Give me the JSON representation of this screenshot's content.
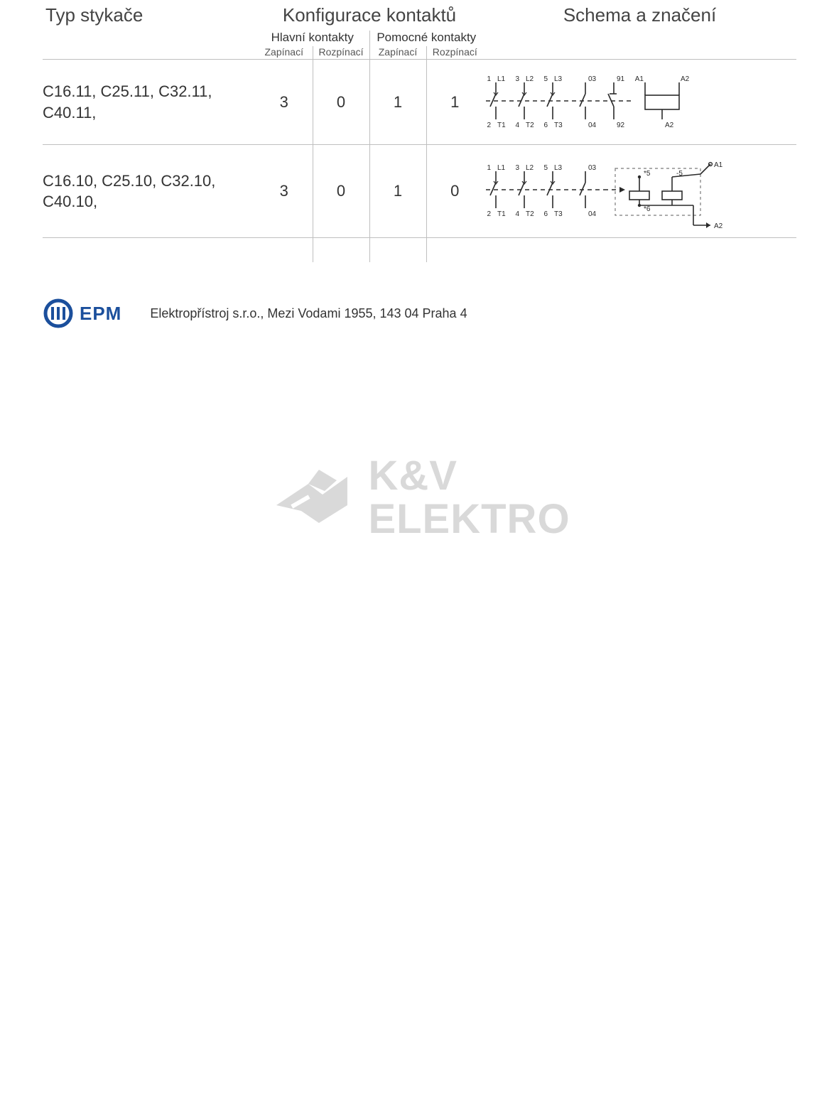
{
  "table": {
    "headers": {
      "type": "Typ stykače",
      "config": "Konfigurace kontaktů",
      "schema": "Schema a značení",
      "main_contacts": "Hlavní kontakty",
      "aux_contacts": "Pomocné kontakty",
      "no": "Zapínací",
      "nc": "Rozpínací"
    },
    "rows": [
      {
        "type": "C16.11, C25.11, C32.11, C40.11,",
        "main_no": "3",
        "main_nc": "0",
        "aux_no": "1",
        "aux_nc": "1",
        "schema": {
          "main": [
            {
              "top": "1",
              "top2": "L1",
              "bot": "2",
              "bot2": "T1"
            },
            {
              "top": "3",
              "top2": "L2",
              "bot": "4",
              "bot2": "T2"
            },
            {
              "top": "5",
              "top2": "L3",
              "bot": "6",
              "bot2": "T3"
            }
          ],
          "aux": [
            {
              "kind": "no",
              "top": "03",
              "bot": "04"
            },
            {
              "kind": "nc",
              "top": "91",
              "bot": "92"
            }
          ],
          "coil": {
            "a1": "A1",
            "a2": "A2"
          },
          "style": "simple"
        }
      },
      {
        "type": "C16.10, C25.10, C32.10, C40.10,",
        "main_no": "3",
        "main_nc": "0",
        "aux_no": "1",
        "aux_nc": "0",
        "schema": {
          "main": [
            {
              "top": "1",
              "top2": "L1",
              "bot": "2",
              "bot2": "T1"
            },
            {
              "top": "3",
              "top2": "L2",
              "bot": "4",
              "bot2": "T2"
            },
            {
              "top": "5",
              "top2": "L3",
              "bot": "6",
              "bot2": "T3"
            }
          ],
          "aux": [
            {
              "kind": "no",
              "top": "03",
              "bot": "04"
            }
          ],
          "module": {
            "t5": "*5",
            "t6": "*6",
            "m5": "-5"
          },
          "coil": {
            "a1": "A1",
            "a2": "A2"
          },
          "style": "module"
        }
      }
    ],
    "colors": {
      "line": "#2a2a2a",
      "border": "#bfbfbf",
      "text": "#333333",
      "dashed": "#7a7a7a"
    }
  },
  "footer": {
    "logo_abbr": "m",
    "logo_text": "EPM",
    "logo_color": "#1b4f9c",
    "address": "Elektropřístroj s.r.o.,  Mezi Vodami 1955, 143 04 Praha 4"
  },
  "watermark": {
    "line1": "K&V",
    "line2": "ELEKTRO",
    "color": "#d9d9d9"
  }
}
